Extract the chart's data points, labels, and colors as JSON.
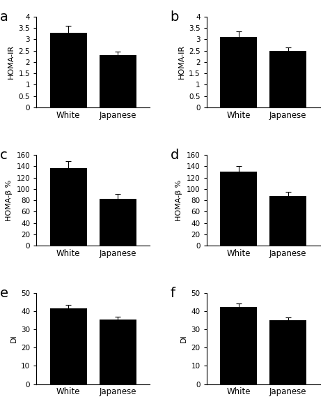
{
  "panels": [
    {
      "label": "a",
      "ylabel": "HOMA-IR",
      "categories": [
        "White",
        "Japanese"
      ],
      "values": [
        3.3,
        2.3
      ],
      "errors": [
        0.3,
        0.15
      ],
      "ylim": [
        0,
        4
      ],
      "yticks": [
        0,
        0.5,
        1,
        1.5,
        2,
        2.5,
        3,
        3.5,
        4
      ],
      "yticklabels": [
        "0",
        "0.5",
        "1",
        "1.5",
        "2",
        "2.5",
        "3",
        "3.5",
        "4"
      ]
    },
    {
      "label": "b",
      "ylabel": "HOMA-IR",
      "categories": [
        "White",
        "Japanese"
      ],
      "values": [
        3.1,
        2.5
      ],
      "errors": [
        0.25,
        0.15
      ],
      "ylim": [
        0,
        4
      ],
      "yticks": [
        0,
        0.5,
        1,
        1.5,
        2,
        2.5,
        3,
        3.5,
        4
      ],
      "yticklabels": [
        "0",
        "0.5",
        "1",
        "1.5",
        "2",
        "2.5",
        "3",
        "3.5",
        "4"
      ]
    },
    {
      "label": "c",
      "ylabel": "HOMA-β %",
      "categories": [
        "White",
        "Japanese"
      ],
      "values": [
        137,
        83
      ],
      "errors": [
        12,
        8
      ],
      "ylim": [
        0,
        160
      ],
      "yticks": [
        0,
        20,
        40,
        60,
        80,
        100,
        120,
        140,
        160
      ],
      "yticklabels": [
        "0",
        "20",
        "40",
        "60",
        "80",
        "100",
        "120",
        "140",
        "160"
      ]
    },
    {
      "label": "d",
      "ylabel": "HOMA-β %",
      "categories": [
        "White",
        "Japanese"
      ],
      "values": [
        130,
        87
      ],
      "errors": [
        10,
        8
      ],
      "ylim": [
        0,
        160
      ],
      "yticks": [
        0,
        20,
        40,
        60,
        80,
        100,
        120,
        140,
        160
      ],
      "yticklabels": [
        "0",
        "20",
        "40",
        "60",
        "80",
        "100",
        "120",
        "140",
        "160"
      ]
    },
    {
      "label": "e",
      "ylabel": "DI",
      "categories": [
        "White",
        "Japanese"
      ],
      "values": [
        41.5,
        35.5
      ],
      "errors": [
        2.0,
        1.5
      ],
      "ylim": [
        0,
        50
      ],
      "yticks": [
        0,
        10,
        20,
        30,
        40,
        50
      ],
      "yticklabels": [
        "0",
        "10",
        "20",
        "30",
        "40",
        "50"
      ]
    },
    {
      "label": "f",
      "ylabel": "DI",
      "categories": [
        "White",
        "Japanese"
      ],
      "values": [
        42.5,
        35.0
      ],
      "errors": [
        1.8,
        1.5
      ],
      "ylim": [
        0,
        50
      ],
      "yticks": [
        0,
        10,
        20,
        30,
        40,
        50
      ],
      "yticklabels": [
        "0",
        "10",
        "20",
        "30",
        "40",
        "50"
      ]
    }
  ],
  "bar_color": "#000000",
  "bar_width": 0.75,
  "tick_fontsize": 7.5,
  "ylabel_fontsize": 8,
  "xlabel_fontsize": 8.5,
  "panel_label_fontsize": 14,
  "cap_size": 3,
  "elinewidth": 0.8,
  "capthick": 0.8
}
